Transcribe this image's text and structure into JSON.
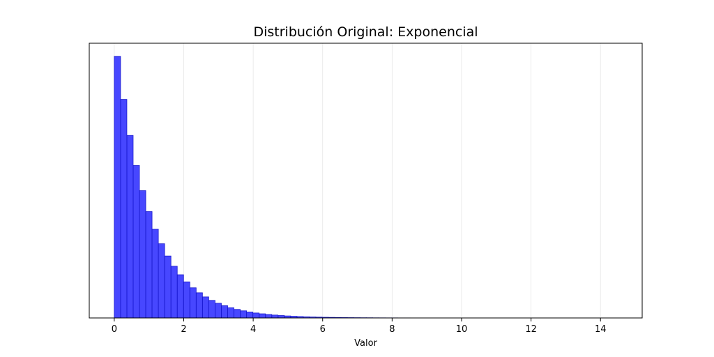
{
  "chart_data": {
    "type": "bar",
    "subtype": "histogram",
    "title": "Distribución Original: Exponencial",
    "xlabel": "Valor",
    "ylabel": "",
    "xlim": [
      -0.72,
      15.2
    ],
    "ylim": [
      0,
      1.05
    ],
    "y_ticks_visible": false,
    "x_ticks": [
      0,
      2,
      4,
      6,
      8,
      10,
      12,
      14
    ],
    "x_tick_labels": [
      "0",
      "2",
      "4",
      "6",
      "8",
      "10",
      "12",
      "14"
    ],
    "grid": "vertical",
    "bin_width": 0.1814,
    "bin_start": 0.0,
    "relative_heights": [
      1.0,
      0.8352,
      0.6976,
      0.5827,
      0.4867,
      0.4065,
      0.3395,
      0.2836,
      0.2368,
      0.1978,
      0.1652,
      0.138,
      0.1153,
      0.0963,
      0.0804,
      0.0672,
      0.0561,
      0.0469,
      0.0391,
      0.0327,
      0.0273,
      0.0228,
      0.019,
      0.0159,
      0.0133,
      0.0111,
      0.0093,
      0.0077,
      0.0065,
      0.0054,
      0.0045,
      0.0038,
      0.0032,
      0.0026,
      0.0022,
      0.0018,
      0.0015,
      0.0013,
      0.0011,
      0.0009,
      0.0008,
      0.0006,
      0.0005,
      0.0004,
      0.0004,
      0.0003,
      0.0003,
      0.0002,
      0.0002,
      0.0002,
      0.0001,
      0.0001,
      0.0001,
      0.0001,
      0.0001,
      0.0001,
      0.0,
      0.0,
      0.0,
      0.0,
      0.0,
      0.0,
      0.0,
      0.0,
      0.0,
      0.0,
      0.0,
      0.0,
      0.0,
      0.0,
      0.0,
      0.0,
      0.0,
      0.0,
      0.0,
      0.0,
      0.0,
      0.0,
      0.0,
      0.0
    ],
    "colors": {
      "bar_fill": "#0000ff",
      "bar_fill_opacity": 0.72,
      "bar_edge": "#1a1acc",
      "grid": "#e6e6e6",
      "frame": "#000000"
    }
  }
}
